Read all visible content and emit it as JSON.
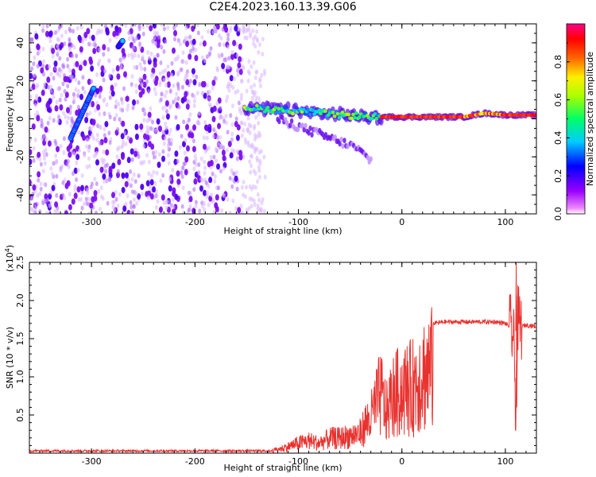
{
  "title": "C2E4.2023.160.13.39.G06",
  "chart_data": [
    {
      "type": "heatmap",
      "xlabel": "Height of straight line (km)",
      "ylabel": "Frequency (Hz)",
      "xlim": [
        -360,
        130
      ],
      "ylim": [
        -50,
        50
      ],
      "xticks": [
        "-300",
        "-200",
        "-100",
        "0",
        "100"
      ],
      "yticks": [
        "-40",
        "-20",
        "0",
        "20",
        "40"
      ],
      "colorbar": {
        "label": "Normalized spectral amplitude",
        "ticks": [
          "0.0",
          "0.2",
          "0.4",
          "0.6",
          "0.8"
        ],
        "range": [
          0,
          1
        ],
        "colormap": "rainbow (magenta-purple-blue-cyan-green-yellow-red-pink)"
      },
      "features": [
        {
          "name": "noise",
          "x_range": [
            -360,
            -155
          ],
          "y_range": [
            -50,
            50
          ],
          "amplitude": 0.1
        },
        {
          "name": "diagonal track",
          "points": [
            [
              -320,
              -10
            ],
            [
              -298,
              16
            ]
          ],
          "amplitude": 0.3
        },
        {
          "name": "diagonal track",
          "points": [
            [
              -274,
              38
            ],
            [
              -270,
              41
            ]
          ],
          "amplitude": 0.3
        },
        {
          "name": "signal line",
          "points": [
            [
              -152,
              6
            ],
            [
              -100,
              4
            ],
            [
              -60,
              2
            ],
            [
              -20,
              1
            ],
            [
              0,
              1
            ],
            [
              60,
              1
            ],
            [
              80,
              3
            ],
            [
              100,
              2
            ],
            [
              130,
              2
            ]
          ],
          "amplitude": 0.9
        },
        {
          "name": "descending branch",
          "points": [
            [
              -120,
              0
            ],
            [
              -80,
              -8
            ],
            [
              -45,
              -15
            ],
            [
              -30,
              -22
            ]
          ],
          "amplitude": 0.1
        }
      ]
    },
    {
      "type": "line",
      "xlabel": "Height of straight line (km)",
      "ylabel": "SNR (10 * v/v)",
      "y_multiplier": "(x10",
      "y_multiplier_exp": "4",
      "y_multiplier_close": ")",
      "xlim": [
        -360,
        130
      ],
      "ylim": [
        0,
        2.5
      ],
      "xticks": [
        "-300",
        "-200",
        "-100",
        "0",
        "100"
      ],
      "yticks": [
        "0.5",
        "1.0",
        "1.5",
        "2.0",
        "2.5"
      ],
      "color": "#e8322f",
      "series": [
        {
          "x": [
            -360,
            -300,
            -200,
            -130,
            -115,
            -100,
            -90,
            -80,
            -70,
            -60,
            -50,
            -40,
            -35,
            -30,
            -25,
            -20,
            -15,
            -10,
            -5,
            0,
            5,
            10,
            15,
            20,
            25,
            30,
            40,
            50,
            60,
            70,
            80,
            90,
            100,
            105,
            108,
            110,
            112,
            115,
            120,
            130
          ],
          "y": [
            0.03,
            0.03,
            0.03,
            0.03,
            0.1,
            0.2,
            0.25,
            0.2,
            0.3,
            0.3,
            0.35,
            0.4,
            0.6,
            0.7,
            1.0,
            1.2,
            0.8,
            1.1,
            1.2,
            1.25,
            1.3,
            1.3,
            1.5,
            1.6,
            1.65,
            1.7,
            1.72,
            1.72,
            1.72,
            1.72,
            1.72,
            1.72,
            1.7,
            1.65,
            1.5,
            0.6,
            1.75,
            1.65,
            1.68,
            1.66
          ]
        }
      ]
    }
  ]
}
